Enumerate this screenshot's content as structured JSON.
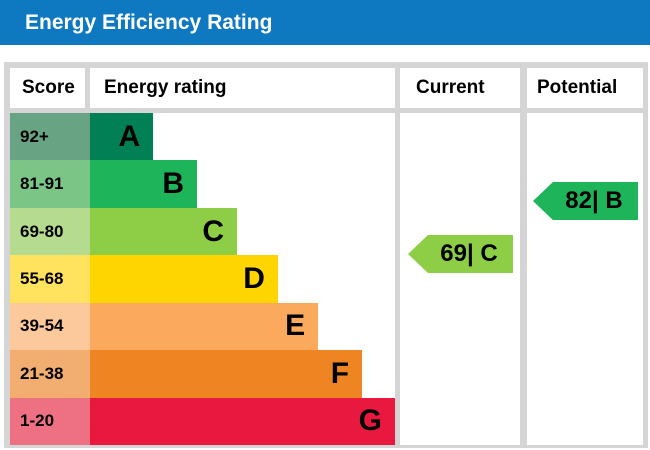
{
  "title": "Energy Efficiency Rating",
  "headers": {
    "score": "Score",
    "rating": "Energy rating",
    "current": "Current",
    "potential": "Potential"
  },
  "colors": {
    "title_bar": "#0e78c1",
    "title_text": "#ffffff",
    "grid": "#d5d5d5",
    "cell_bg": "#ffffff",
    "text": "#000000"
  },
  "chart_data": {
    "type": "bar",
    "title": "Energy Efficiency Rating",
    "bands": [
      {
        "letter": "A",
        "score_range": "92+",
        "min": 92,
        "max": 100,
        "bar_color": "#008054",
        "score_cell_color": "#68a483",
        "width_pct": 20.7
      },
      {
        "letter": "B",
        "score_range": "81-91",
        "min": 81,
        "max": 91,
        "bar_color": "#1eb45a",
        "score_cell_color": "#7bc686",
        "width_pct": 35.1
      },
      {
        "letter": "C",
        "score_range": "69-80",
        "min": 69,
        "max": 80,
        "bar_color": "#8dce46",
        "score_cell_color": "#b5dc8e",
        "width_pct": 48.2
      },
      {
        "letter": "D",
        "score_range": "55-68",
        "min": 55,
        "max": 68,
        "bar_color": "#ffd500",
        "score_cell_color": "#ffe25e",
        "width_pct": 61.6
      },
      {
        "letter": "E",
        "score_range": "39-54",
        "min": 39,
        "max": 54,
        "bar_color": "#fbaa5d",
        "score_cell_color": "#fbc99b",
        "width_pct": 74.8
      },
      {
        "letter": "F",
        "score_range": "21-38",
        "min": 21,
        "max": 38,
        "bar_color": "#ee8522",
        "score_cell_color": "#f2ad70",
        "width_pct": 89.2
      },
      {
        "letter": "G",
        "score_range": "1-20",
        "min": 1,
        "max": 20,
        "bar_color": "#e9183f",
        "score_cell_color": "#ee7183",
        "width_pct": 100
      }
    ],
    "current": {
      "value": 69,
      "band": "C",
      "label": "69| C",
      "color": "#8dce46"
    },
    "potential": {
      "value": 82,
      "band": "B",
      "label": "82| B",
      "color": "#1eb45a"
    }
  }
}
